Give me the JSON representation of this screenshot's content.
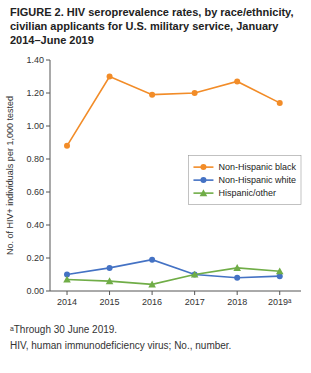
{
  "chart_data": {
    "type": "line",
    "title": "FIGURE 2. HIV seroprevalence rates, by race/ethnicity, civilian applicants for U.S. military service, January 2014–June 2019",
    "y_label": "No. of HIV+ individuals per 1,000 tested",
    "annotations": [
      "ᵃThrough 30 June 2019.",
      "HIV, human immunodeficiency virus; No., number."
    ],
    "x": [
      2014,
      2015,
      2016,
      2017,
      2018,
      2019
    ],
    "xlim": [
      2013.6,
      2019.5
    ],
    "xticks": [
      2014,
      2015,
      2016,
      2017,
      2018,
      {
        "value": 2019,
        "label": "2019ᵃ"
      }
    ],
    "ylim": [
      0.0,
      1.4
    ],
    "yticks": [
      {
        "value": 0.0,
        "label": "0.00"
      },
      {
        "value": 0.2,
        "label": "0.20"
      },
      {
        "value": 0.4,
        "label": "0.40"
      },
      {
        "value": 0.6,
        "label": "0.60"
      },
      {
        "value": 0.8,
        "label": "0.80"
      },
      {
        "value": 1.0,
        "label": "1.00"
      },
      {
        "value": 1.2,
        "label": "1.20"
      },
      {
        "value": 1.4,
        "label": "1.40"
      }
    ],
    "series": [
      {
        "name": "Non-Hispanic black",
        "color": "#F28C28",
        "marker": "circle",
        "values": [
          0.88,
          1.3,
          1.19,
          1.2,
          1.27,
          1.14
        ]
      },
      {
        "name": "Non-Hispanic white",
        "color": "#4472C4",
        "marker": "circle",
        "values": [
          0.1,
          0.14,
          0.19,
          0.1,
          0.08,
          0.09
        ]
      },
      {
        "name": "Hispanic/other",
        "color": "#70AD47",
        "marker": "triangle",
        "values": [
          0.07,
          0.06,
          0.04,
          0.1,
          0.14,
          0.12
        ]
      }
    ],
    "legend": "right",
    "grid": false
  }
}
